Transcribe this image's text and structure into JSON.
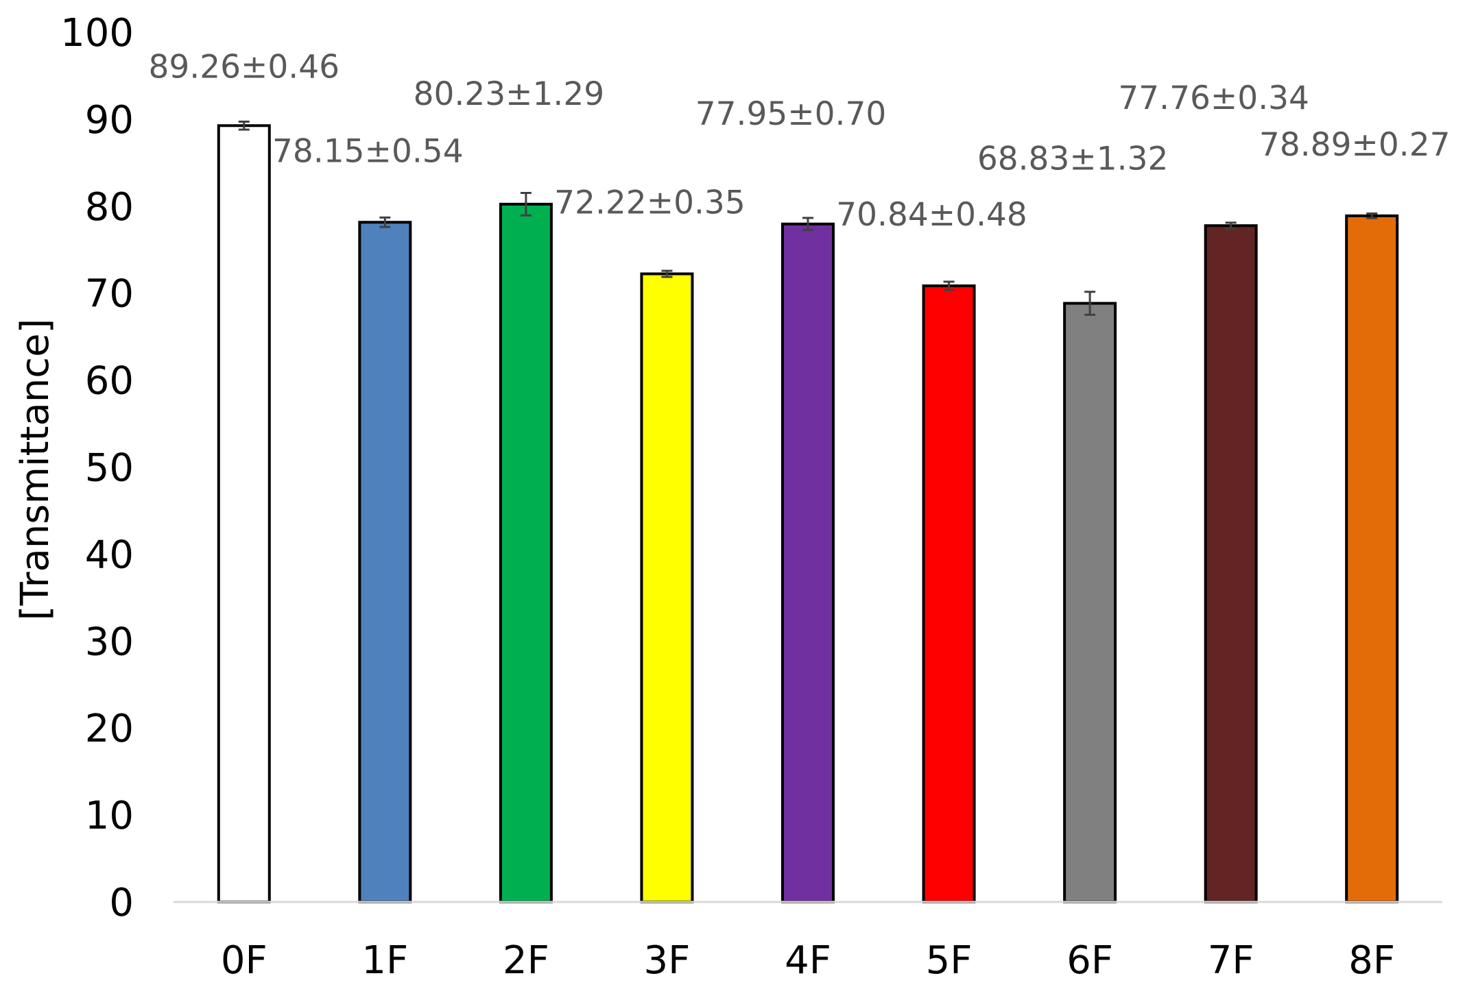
{
  "chart_data": {
    "type": "bar",
    "title": "",
    "xlabel": "",
    "ylabel": "[Transmittance]",
    "ylim": [
      0,
      100
    ],
    "yticks": [
      0,
      10,
      20,
      30,
      40,
      50,
      60,
      70,
      80,
      90,
      100
    ],
    "grid": false,
    "legend": "none",
    "categories": [
      "0F",
      "1F",
      "2F",
      "3F",
      "4F",
      "5F",
      "6F",
      "7F",
      "8F"
    ],
    "values": [
      89.26,
      78.15,
      80.23,
      72.22,
      77.95,
      70.84,
      68.83,
      77.76,
      78.89
    ],
    "errors": [
      0.46,
      0.54,
      1.29,
      0.35,
      0.7,
      0.48,
      1.32,
      0.34,
      0.27
    ],
    "data_labels": [
      "89.26±0.46",
      "78.15±0.54",
      "80.23±1.29",
      "72.22±0.35",
      "77.95±0.70",
      "70.84±0.48",
      "68.83±1.32",
      "77.76±0.34",
      "78.89±0.27"
    ],
    "colors": [
      "#ffffff",
      "#4f81bd",
      "#00b050",
      "#ffff00",
      "#7030a0",
      "#ff0000",
      "#808080",
      "#632523",
      "#e36c09"
    ],
    "axis_color": "#d9d9d9",
    "error_bar_color": "#404040"
  }
}
